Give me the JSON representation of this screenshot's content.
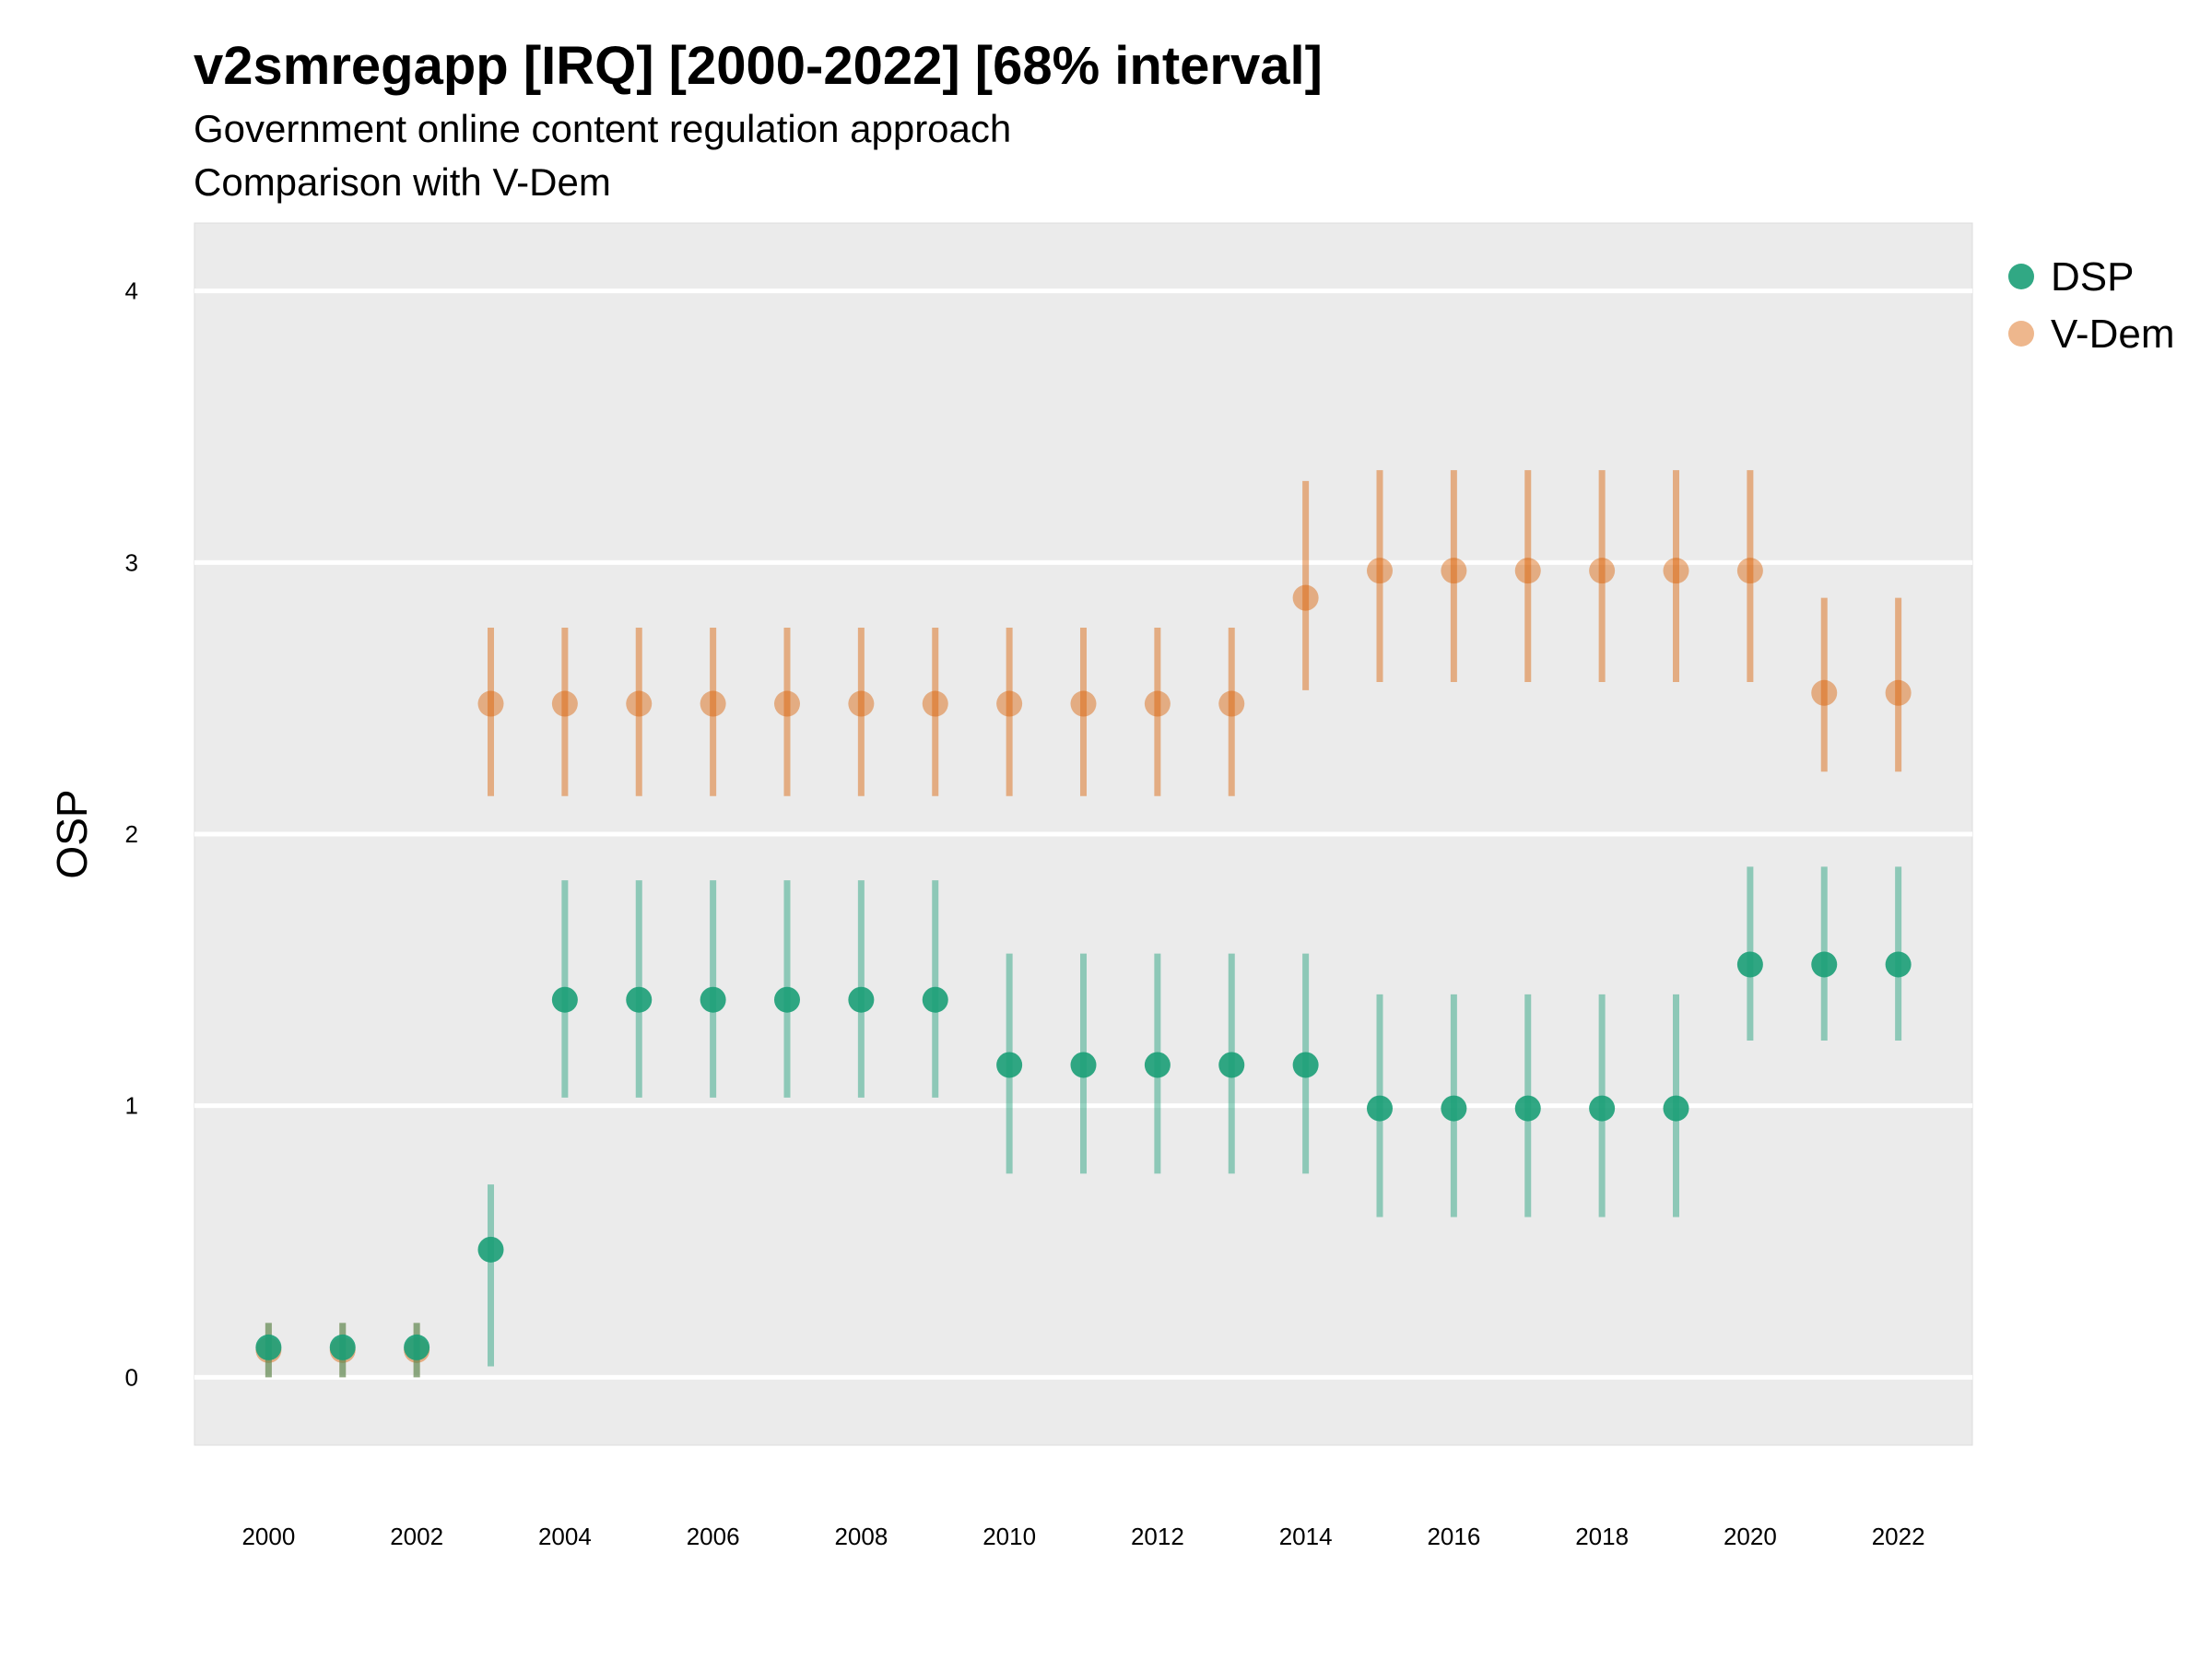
{
  "chart_data": {
    "type": "scatter",
    "title": "v2smregapp [IRQ] [2000-2022] [68% interval]",
    "subtitle": "Government online content regulation approach",
    "caption": "Comparison with V-Dem",
    "ylabel": "OSP",
    "xlabel": "",
    "x": [
      2000,
      2001,
      2002,
      2003,
      2004,
      2005,
      2006,
      2007,
      2008,
      2009,
      2010,
      2011,
      2012,
      2013,
      2014,
      2015,
      2016,
      2017,
      2018,
      2019,
      2020,
      2021,
      2022
    ],
    "x_ticks": [
      2000,
      2002,
      2004,
      2006,
      2008,
      2010,
      2012,
      2014,
      2016,
      2018,
      2020,
      2022
    ],
    "y_ticks": [
      0,
      1,
      2,
      3,
      4
    ],
    "ylim": [
      -0.25,
      4.25
    ],
    "xlim": [
      1999,
      2023
    ],
    "grid": true,
    "legend_position": "right",
    "series": [
      {
        "name": "DSP",
        "color": "#1b9e77",
        "values": [
          0.11,
          0.11,
          0.11,
          0.47,
          1.39,
          1.39,
          1.39,
          1.39,
          1.39,
          1.39,
          1.15,
          1.15,
          1.15,
          1.15,
          1.15,
          0.99,
          0.99,
          0.99,
          0.99,
          0.99,
          1.52,
          1.52,
          1.52
        ],
        "lower": [
          0.0,
          0.0,
          0.0,
          0.04,
          1.03,
          1.03,
          1.03,
          1.03,
          1.03,
          1.03,
          0.75,
          0.75,
          0.75,
          0.75,
          0.75,
          0.59,
          0.59,
          0.59,
          0.59,
          0.59,
          1.24,
          1.24,
          1.24
        ],
        "upper": [
          0.2,
          0.2,
          0.2,
          0.71,
          1.83,
          1.83,
          1.83,
          1.83,
          1.83,
          1.83,
          1.56,
          1.56,
          1.56,
          1.56,
          1.56,
          1.41,
          1.41,
          1.41,
          1.41,
          1.41,
          1.88,
          1.88,
          1.88
        ]
      },
      {
        "name": "V-Dem",
        "color": "#d95f02",
        "values": [
          0.1,
          0.1,
          0.1,
          2.48,
          2.48,
          2.48,
          2.48,
          2.48,
          2.48,
          2.48,
          2.48,
          2.48,
          2.48,
          2.48,
          2.87,
          2.97,
          2.97,
          2.97,
          2.97,
          2.97,
          2.97,
          2.52,
          2.52
        ],
        "lower": [
          0.0,
          0.0,
          0.0,
          2.14,
          2.14,
          2.14,
          2.14,
          2.14,
          2.14,
          2.14,
          2.14,
          2.14,
          2.14,
          2.14,
          2.53,
          2.56,
          2.56,
          2.56,
          2.56,
          2.56,
          2.56,
          2.23,
          2.23
        ],
        "upper": [
          0.2,
          0.2,
          0.2,
          2.76,
          2.76,
          2.76,
          2.76,
          2.76,
          2.76,
          2.76,
          2.76,
          2.76,
          2.76,
          2.76,
          3.3,
          3.34,
          3.34,
          3.34,
          3.34,
          3.34,
          3.34,
          2.87,
          2.87
        ]
      }
    ]
  }
}
